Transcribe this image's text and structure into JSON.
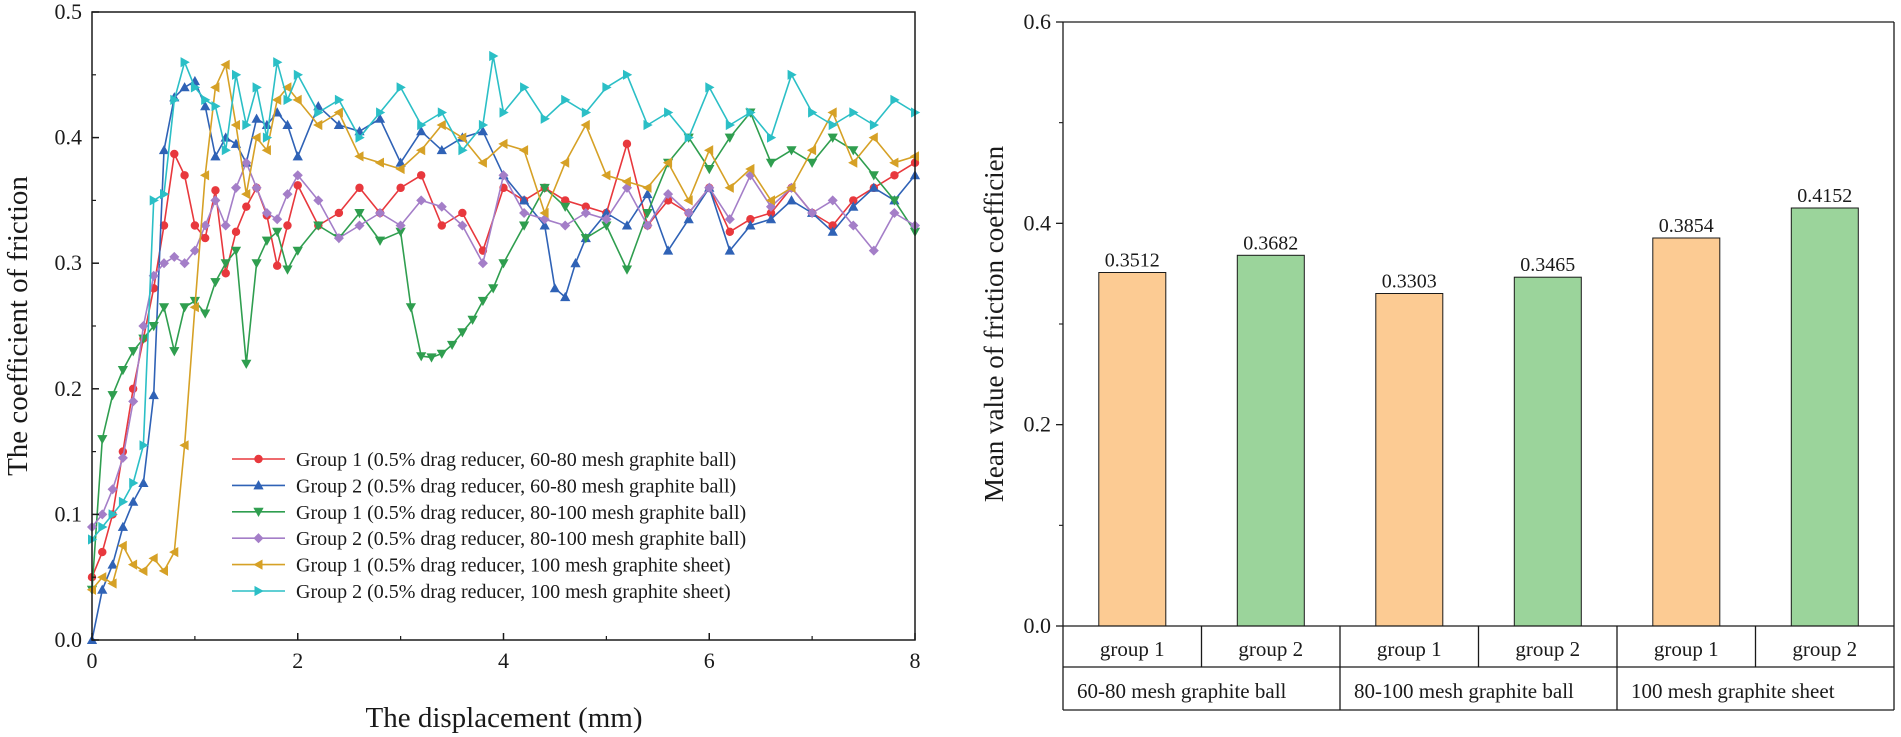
{
  "colors": {
    "group1_ball6080": "#e8383d",
    "group2_ball6080": "#2f62b6",
    "group1_ball80100": "#2f9e4f",
    "group2_ball80100": "#a47ec8",
    "group1_sheet100": "#d6a126",
    "group2_sheet100": "#2bbfc6",
    "bar_group1": "#fccb93",
    "bar_group2": "#9bd49b",
    "axis": "#1a1a1a"
  },
  "chart_data": [
    {
      "type": "line",
      "xlabel": "The displacement (mm)",
      "ylabel": "The coefficient of friction",
      "xlim": [
        0,
        8
      ],
      "ylim": [
        0,
        0.5
      ],
      "x_ticks": [
        "0",
        "2",
        "4",
        "6",
        "8"
      ],
      "y_ticks": [
        "0.0",
        "0.1",
        "0.2",
        "0.3",
        "0.4",
        "0.5"
      ],
      "legend_position": "bottom-center",
      "series": [
        {
          "name": "Group 1 (0.5% drag reducer, 60-80 mesh graphite ball)",
          "color_key": "group1_ball6080",
          "marker": "circle",
          "x": [
            0,
            0.1,
            0.2,
            0.3,
            0.4,
            0.5,
            0.6,
            0.7,
            0.8,
            0.9,
            1.0,
            1.1,
            1.2,
            1.3,
            1.4,
            1.5,
            1.6,
            1.7,
            1.8,
            1.9,
            2.0,
            2.2,
            2.4,
            2.6,
            2.8,
            3.0,
            3.2,
            3.4,
            3.6,
            3.8,
            4.0,
            4.2,
            4.4,
            4.6,
            4.8,
            5.0,
            5.2,
            5.4,
            5.6,
            5.8,
            6.0,
            6.2,
            6.4,
            6.6,
            6.8,
            7.0,
            7.2,
            7.4,
            7.6,
            7.8,
            8.0
          ],
          "y": [
            0.05,
            0.07,
            0.1,
            0.15,
            0.2,
            0.24,
            0.28,
            0.33,
            0.387,
            0.37,
            0.33,
            0.32,
            0.358,
            0.292,
            0.325,
            0.345,
            0.36,
            0.338,
            0.298,
            0.33,
            0.362,
            0.33,
            0.34,
            0.36,
            0.34,
            0.36,
            0.37,
            0.33,
            0.34,
            0.31,
            0.36,
            0.35,
            0.36,
            0.35,
            0.345,
            0.34,
            0.395,
            0.33,
            0.35,
            0.34,
            0.36,
            0.325,
            0.335,
            0.34,
            0.36,
            0.34,
            0.33,
            0.35,
            0.36,
            0.37,
            0.38
          ]
        },
        {
          "name": "Group 2 (0.5% drag reducer, 60-80 mesh graphite ball)",
          "color_key": "group2_ball6080",
          "marker": "triangle-up",
          "x": [
            0,
            0.1,
            0.2,
            0.3,
            0.4,
            0.5,
            0.6,
            0.7,
            0.8,
            0.9,
            1.0,
            1.1,
            1.2,
            1.3,
            1.4,
            1.5,
            1.6,
            1.7,
            1.8,
            1.9,
            2.0,
            2.2,
            2.4,
            2.6,
            2.8,
            3.0,
            3.2,
            3.4,
            3.6,
            3.8,
            4.0,
            4.2,
            4.4,
            4.5,
            4.6,
            4.7,
            4.8,
            5.0,
            5.2,
            5.4,
            5.6,
            5.8,
            6.0,
            6.2,
            6.4,
            6.6,
            6.8,
            7.0,
            7.2,
            7.4,
            7.6,
            7.8,
            8.0
          ],
          "y": [
            0.0,
            0.04,
            0.06,
            0.09,
            0.11,
            0.125,
            0.195,
            0.39,
            0.432,
            0.44,
            0.445,
            0.425,
            0.385,
            0.4,
            0.395,
            0.38,
            0.415,
            0.41,
            0.42,
            0.41,
            0.385,
            0.425,
            0.41,
            0.405,
            0.415,
            0.38,
            0.405,
            0.39,
            0.4,
            0.405,
            0.37,
            0.35,
            0.33,
            0.28,
            0.273,
            0.3,
            0.32,
            0.34,
            0.33,
            0.355,
            0.31,
            0.335,
            0.36,
            0.31,
            0.33,
            0.335,
            0.35,
            0.34,
            0.325,
            0.345,
            0.36,
            0.35,
            0.37
          ]
        },
        {
          "name": "Group 1 (0.5% drag reducer, 80-100 mesh graphite ball)",
          "color_key": "group1_ball80100",
          "marker": "triangle-down",
          "x": [
            0,
            0.1,
            0.2,
            0.3,
            0.4,
            0.5,
            0.6,
            0.7,
            0.8,
            0.9,
            1.0,
            1.1,
            1.2,
            1.3,
            1.4,
            1.5,
            1.6,
            1.7,
            1.8,
            1.9,
            2.0,
            2.2,
            2.4,
            2.6,
            2.8,
            3.0,
            3.1,
            3.2,
            3.3,
            3.4,
            3.5,
            3.6,
            3.7,
            3.8,
            3.9,
            4.0,
            4.2,
            4.4,
            4.6,
            4.8,
            5.0,
            5.2,
            5.4,
            5.6,
            5.8,
            6.0,
            6.2,
            6.4,
            6.6,
            6.8,
            7.0,
            7.2,
            7.4,
            7.6,
            7.8,
            8.0
          ],
          "y": [
            0.04,
            0.16,
            0.195,
            0.215,
            0.23,
            0.24,
            0.25,
            0.265,
            0.23,
            0.265,
            0.27,
            0.26,
            0.285,
            0.3,
            0.31,
            0.22,
            0.3,
            0.318,
            0.325,
            0.295,
            0.31,
            0.33,
            0.32,
            0.34,
            0.318,
            0.325,
            0.265,
            0.226,
            0.225,
            0.228,
            0.235,
            0.245,
            0.255,
            0.27,
            0.28,
            0.3,
            0.33,
            0.36,
            0.345,
            0.32,
            0.33,
            0.295,
            0.34,
            0.38,
            0.4,
            0.375,
            0.4,
            0.42,
            0.38,
            0.39,
            0.38,
            0.4,
            0.39,
            0.37,
            0.35,
            0.325
          ]
        },
        {
          "name": "Group 2 (0.5% drag reducer, 80-100 mesh graphite ball)",
          "color_key": "group2_ball80100",
          "marker": "diamond",
          "x": [
            0,
            0.1,
            0.2,
            0.3,
            0.4,
            0.5,
            0.6,
            0.7,
            0.8,
            0.9,
            1.0,
            1.1,
            1.2,
            1.3,
            1.4,
            1.5,
            1.6,
            1.7,
            1.8,
            1.9,
            2.0,
            2.2,
            2.4,
            2.6,
            2.8,
            3.0,
            3.2,
            3.4,
            3.6,
            3.8,
            4.0,
            4.2,
            4.4,
            4.6,
            4.8,
            5.0,
            5.2,
            5.4,
            5.6,
            5.8,
            6.0,
            6.2,
            6.4,
            6.6,
            6.8,
            7.0,
            7.2,
            7.4,
            7.6,
            7.8,
            8.0
          ],
          "y": [
            0.09,
            0.1,
            0.12,
            0.145,
            0.19,
            0.25,
            0.29,
            0.3,
            0.305,
            0.3,
            0.31,
            0.33,
            0.35,
            0.33,
            0.36,
            0.38,
            0.36,
            0.34,
            0.335,
            0.355,
            0.37,
            0.35,
            0.32,
            0.33,
            0.34,
            0.33,
            0.35,
            0.345,
            0.33,
            0.3,
            0.37,
            0.34,
            0.335,
            0.33,
            0.34,
            0.335,
            0.36,
            0.33,
            0.355,
            0.34,
            0.36,
            0.335,
            0.37,
            0.345,
            0.36,
            0.34,
            0.35,
            0.33,
            0.31,
            0.34,
            0.33
          ]
        },
        {
          "name": "Group 1 (0.5% drag reducer, 100 mesh graphite sheet)",
          "color_key": "group1_sheet100",
          "marker": "triangle-left",
          "x": [
            0,
            0.1,
            0.2,
            0.3,
            0.4,
            0.5,
            0.6,
            0.7,
            0.8,
            0.9,
            1.0,
            1.1,
            1.2,
            1.3,
            1.4,
            1.5,
            1.6,
            1.7,
            1.8,
            1.9,
            2.0,
            2.2,
            2.4,
            2.6,
            2.8,
            3.0,
            3.2,
            3.4,
            3.6,
            3.8,
            4.0,
            4.2,
            4.4,
            4.6,
            4.8,
            5.0,
            5.2,
            5.4,
            5.6,
            5.8,
            6.0,
            6.2,
            6.4,
            6.6,
            6.8,
            7.0,
            7.2,
            7.4,
            7.6,
            7.8,
            8.0
          ],
          "y": [
            0.04,
            0.05,
            0.045,
            0.075,
            0.06,
            0.055,
            0.065,
            0.055,
            0.07,
            0.155,
            0.265,
            0.37,
            0.44,
            0.458,
            0.41,
            0.355,
            0.4,
            0.39,
            0.43,
            0.44,
            0.43,
            0.41,
            0.42,
            0.385,
            0.38,
            0.375,
            0.39,
            0.41,
            0.4,
            0.38,
            0.395,
            0.39,
            0.34,
            0.38,
            0.41,
            0.37,
            0.365,
            0.36,
            0.38,
            0.35,
            0.39,
            0.36,
            0.375,
            0.35,
            0.36,
            0.39,
            0.42,
            0.38,
            0.4,
            0.38,
            0.385
          ]
        },
        {
          "name": "Group 2 (0.5% drag reducer, 100 mesh graphite sheet)",
          "color_key": "group2_sheet100",
          "marker": "triangle-right",
          "x": [
            0,
            0.1,
            0.2,
            0.3,
            0.4,
            0.5,
            0.6,
            0.7,
            0.8,
            0.9,
            1.0,
            1.1,
            1.2,
            1.3,
            1.4,
            1.5,
            1.6,
            1.7,
            1.8,
            1.9,
            2.0,
            2.2,
            2.4,
            2.6,
            2.8,
            3.0,
            3.2,
            3.4,
            3.6,
            3.8,
            3.9,
            4.0,
            4.2,
            4.4,
            4.6,
            4.8,
            5.0,
            5.2,
            5.4,
            5.6,
            5.8,
            6.0,
            6.2,
            6.4,
            6.6,
            6.8,
            7.0,
            7.2,
            7.4,
            7.6,
            7.8,
            8.0
          ],
          "y": [
            0.08,
            0.09,
            0.1,
            0.11,
            0.125,
            0.155,
            0.35,
            0.355,
            0.43,
            0.46,
            0.44,
            0.43,
            0.425,
            0.39,
            0.45,
            0.41,
            0.44,
            0.4,
            0.46,
            0.43,
            0.45,
            0.42,
            0.43,
            0.4,
            0.42,
            0.44,
            0.41,
            0.42,
            0.39,
            0.41,
            0.465,
            0.42,
            0.44,
            0.415,
            0.43,
            0.42,
            0.44,
            0.45,
            0.41,
            0.42,
            0.4,
            0.44,
            0.41,
            0.42,
            0.4,
            0.45,
            0.42,
            0.41,
            0.42,
            0.41,
            0.43,
            0.42
          ]
        }
      ]
    },
    {
      "type": "bar",
      "ylabel": "Mean value of friction coefficien",
      "ylim": [
        0,
        0.6
      ],
      "y_ticks": [
        "0.0",
        "0.2",
        "0.4",
        "0.6"
      ],
      "groups": [
        "60-80 mesh graphite ball",
        "80-100 mesh graphite ball",
        "100 mesh graphite sheet"
      ],
      "categories": [
        "group 1",
        "group 2",
        "group 1",
        "group 2",
        "group 1",
        "group 2"
      ],
      "values": [
        0.3512,
        0.3682,
        0.3303,
        0.3465,
        0.3854,
        0.4152
      ],
      "value_labels": [
        "0.3512",
        "0.3682",
        "0.3303",
        "0.3465",
        "0.3854",
        "0.4152"
      ],
      "bar_color_keys": [
        "bar_group1",
        "bar_group2",
        "bar_group1",
        "bar_group2",
        "bar_group1",
        "bar_group2"
      ]
    }
  ]
}
